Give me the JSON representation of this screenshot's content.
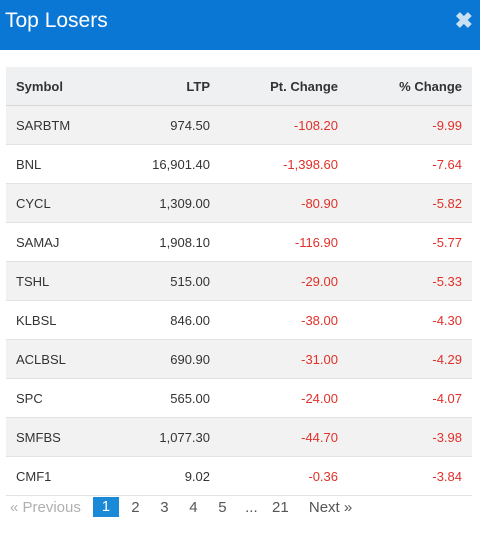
{
  "header": {
    "title": "Top Losers",
    "close_glyph": "✖"
  },
  "table": {
    "columns": [
      "Symbol",
      "LTP",
      "Pt. Change",
      "% Change"
    ],
    "rows": [
      {
        "symbol": "SARBTM",
        "ltp": "974.50",
        "pt_change": "-108.20",
        "pct_change": "-9.99"
      },
      {
        "symbol": "BNL",
        "ltp": "16,901.40",
        "pt_change": "-1,398.60",
        "pct_change": "-7.64"
      },
      {
        "symbol": "CYCL",
        "ltp": "1,309.00",
        "pt_change": "-80.90",
        "pct_change": "-5.82"
      },
      {
        "symbol": "SAMAJ",
        "ltp": "1,908.10",
        "pt_change": "-116.90",
        "pct_change": "-5.77"
      },
      {
        "symbol": "TSHL",
        "ltp": "515.00",
        "pt_change": "-29.00",
        "pct_change": "-5.33"
      },
      {
        "symbol": "KLBSL",
        "ltp": "846.00",
        "pt_change": "-38.00",
        "pct_change": "-4.30"
      },
      {
        "symbol": "ACLBSL",
        "ltp": "690.90",
        "pt_change": "-31.00",
        "pct_change": "-4.29"
      },
      {
        "symbol": "SPC",
        "ltp": "565.00",
        "pt_change": "-24.00",
        "pct_change": "-4.07"
      },
      {
        "symbol": "SMFBS",
        "ltp": "1,077.30",
        "pt_change": "-44.70",
        "pct_change": "-3.98"
      },
      {
        "symbol": "CMF1",
        "ltp": "9.02",
        "pt_change": "-0.36",
        "pct_change": "-3.84"
      }
    ]
  },
  "pagination": {
    "prev_label": "« Previous",
    "pages": [
      "1",
      "2",
      "3",
      "4",
      "5",
      "...",
      "21"
    ],
    "active_page": "1",
    "next_label": "Next »"
  },
  "colors": {
    "header_bg": "#0a77d5",
    "negative": "#e0312a",
    "active_page": "#1a8ad8"
  }
}
